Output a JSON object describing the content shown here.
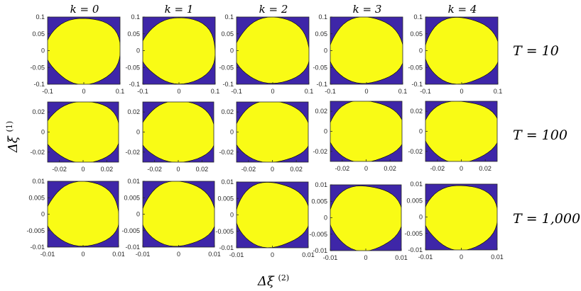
{
  "chart_data": {
    "type": "contour",
    "column_titles": [
      "k = 0",
      "k = 1",
      "k = 2",
      "k = 3",
      "k = 4"
    ],
    "row_titles": [
      "T = 10",
      "T = 100",
      "T = 1,000"
    ],
    "xlabel": "Δξ(2)",
    "ylabel": "Δξ(1)",
    "rows": [
      {
        "T": "T = 10",
        "xlim": [
          -0.1,
          0.1
        ],
        "ylim": [
          -0.1,
          0.1
        ],
        "xticks": [
          "-0.1",
          "0",
          "0.1"
        ],
        "yticks": [
          "0.1",
          "0.05",
          "0",
          "-0.05",
          "-0.1"
        ],
        "panels": [
          {
            "k": "0",
            "center": [
              0.0,
              0.0
            ],
            "spread": 0.045
          },
          {
            "k": "1",
            "center": [
              0.0,
              0.0
            ],
            "spread": 0.045
          },
          {
            "k": "2",
            "center": [
              0.0,
              0.0
            ],
            "spread": 0.045
          },
          {
            "k": "3",
            "center": [
              0.0,
              0.0
            ],
            "spread": 0.045
          },
          {
            "k": "4",
            "center": [
              0.0,
              0.0
            ],
            "spread": 0.045
          }
        ]
      },
      {
        "T": "T = 100",
        "xlim": [
          -0.03,
          0.03
        ],
        "ylim": [
          -0.03,
          0.03
        ],
        "xticks": [
          "-0.02",
          "0",
          "0.02"
        ],
        "yticks": [
          "0.02",
          "0",
          "-0.02"
        ],
        "panels": [
          {
            "k": "0",
            "center": [
              0.0,
              0.0
            ],
            "spread": 0.014
          },
          {
            "k": "1",
            "center": [
              0.0,
              0.0
            ],
            "spread": 0.014
          },
          {
            "k": "2",
            "center": [
              0.0,
              0.0
            ],
            "spread": 0.014
          },
          {
            "k": "3",
            "center": [
              0.0,
              0.0
            ],
            "spread": 0.014
          },
          {
            "k": "4",
            "center": [
              0.0,
              0.0
            ],
            "spread": 0.014
          }
        ]
      },
      {
        "T": "T = 1,000",
        "xlim": [
          -0.01,
          0.01
        ],
        "ylim": [
          -0.01,
          0.01
        ],
        "xticks": [
          "-0.01",
          "0",
          "0.01"
        ],
        "yticks": [
          "0.01",
          "0.005",
          "0",
          "-0.005",
          "-0.01"
        ],
        "panels": [
          {
            "k": "0",
            "center": [
              0.0,
              0.0
            ],
            "spread": 0.0045
          },
          {
            "k": "1",
            "center": [
              0.0,
              0.0
            ],
            "spread": 0.0045
          },
          {
            "k": "2",
            "center": [
              0.0,
              0.0
            ],
            "spread": 0.0045
          },
          {
            "k": "3",
            "center": [
              0.0,
              0.0
            ],
            "spread": 0.0045
          },
          {
            "k": "4",
            "center": [
              0.0,
              0.0
            ],
            "spread": 0.0045
          }
        ]
      }
    ],
    "contour_levels": 10,
    "colormap": [
      "#3e26a8",
      "#4742e2",
      "#3e69f9",
      "#2b8ef0",
      "#1ea9dc",
      "#1ac0b9",
      "#3dcb88",
      "#93cb4d",
      "#d8ba3b",
      "#fbce31",
      "#f9fb15"
    ],
    "grid": false,
    "legend": "none"
  }
}
